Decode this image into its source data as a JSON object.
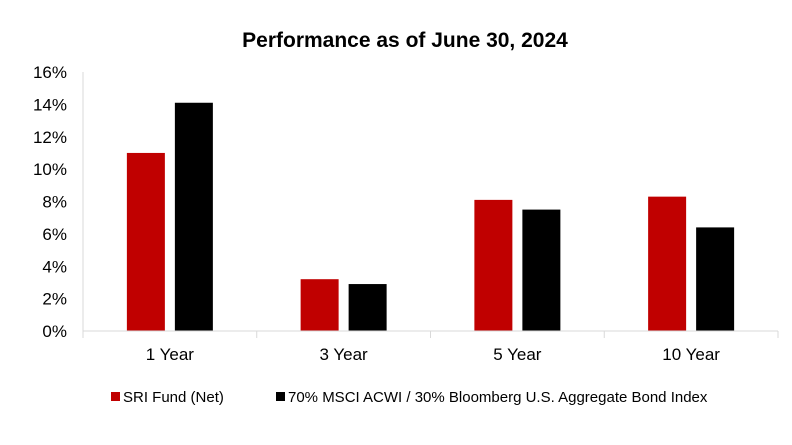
{
  "chart_data": {
    "type": "bar",
    "title": "Performance as of June 30, 2024",
    "xlabel": "",
    "ylabel": "",
    "categories": [
      "1 Year",
      "3 Year",
      "5 Year",
      "10 Year"
    ],
    "series": [
      {
        "name": "SRI Fund (Net)",
        "color": "#c00000",
        "values": [
          11.0,
          3.2,
          8.1,
          8.3
        ]
      },
      {
        "name": "70% MSCI ACWI / 30% Bloomberg U.S. Aggregate Bond Index",
        "color": "#000000",
        "values": [
          14.1,
          2.9,
          7.5,
          6.4
        ]
      }
    ],
    "ylim": [
      0,
      16
    ],
    "yticks": [
      0,
      2,
      4,
      6,
      8,
      10,
      12,
      14,
      16
    ],
    "ytick_labels": [
      "0%",
      "2%",
      "4%",
      "6%",
      "8%",
      "10%",
      "12%",
      "14%",
      "16%"
    ],
    "grid": false,
    "legend_position": "bottom"
  }
}
